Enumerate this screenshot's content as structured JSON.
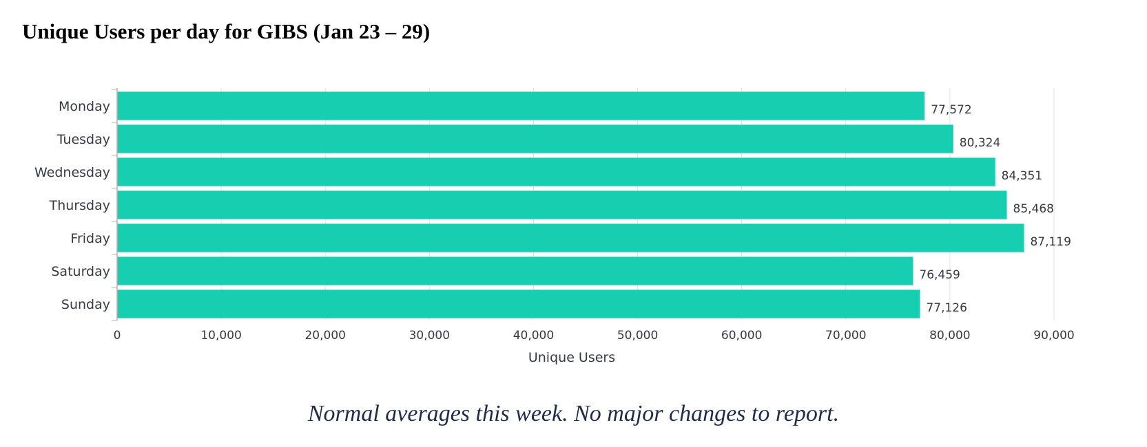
{
  "page": {
    "title": "Unique Users per day for GIBS (Jan 23 – 29)",
    "note": "Normal averages this week.  No major changes to report."
  },
  "chart_data": {
    "type": "bar",
    "orientation": "horizontal",
    "categories": [
      "Monday",
      "Tuesday",
      "Wednesday",
      "Thursday",
      "Friday",
      "Saturday",
      "Sunday"
    ],
    "values": [
      77572,
      80324,
      84351,
      85468,
      87119,
      76459,
      77126
    ],
    "value_labels": [
      "77,572",
      "80,324",
      "84,351",
      "85,468",
      "87,119",
      "76,459",
      "77,126"
    ],
    "xlabel": "Unique Users",
    "ylabel": "",
    "xlim": [
      0,
      90000
    ],
    "xticks": [
      0,
      10000,
      20000,
      30000,
      40000,
      50000,
      60000,
      70000,
      80000,
      90000
    ],
    "xtick_labels": [
      "0",
      "10,000",
      "20,000",
      "30,000",
      "40,000",
      "50,000",
      "60,000",
      "70,000",
      "80,000",
      "90,000"
    ],
    "grid": "vertical",
    "legend": "none",
    "bar_color": "#17cfb0",
    "grid_color": "#e2e2e2",
    "axis_color": "#b0b0b0"
  }
}
